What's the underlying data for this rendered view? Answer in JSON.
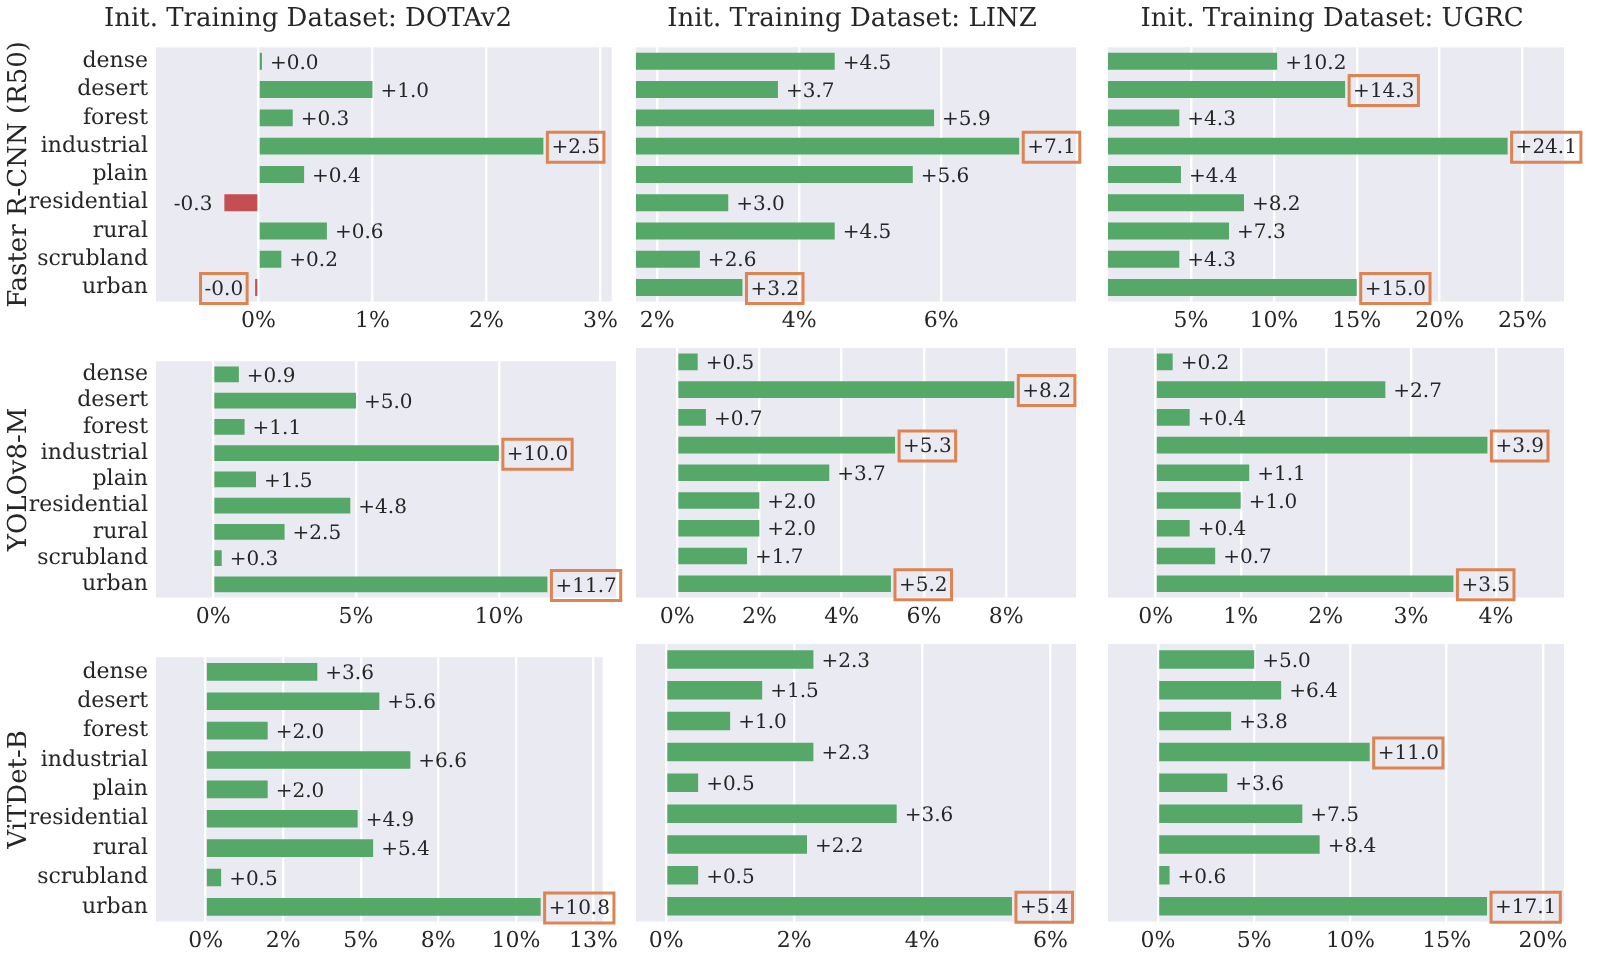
{
  "chart_data": [
    {
      "type": "bar",
      "orientation": "horizontal",
      "title": "Init. Training Dataset: DOTAv2",
      "ylabel": "Faster R-CNN (R50)",
      "categories": [
        "dense",
        "desert",
        "forest",
        "industrial",
        "plain",
        "residential",
        "rural",
        "scrubland",
        "urban"
      ],
      "values": [
        0.03,
        1.0,
        0.3,
        2.5,
        0.4,
        -0.3,
        0.6,
        0.2,
        -0.03
      ],
      "colors": [
        "#55a868",
        "#55a868",
        "#55a868",
        "#55a868",
        "#55a868",
        "#c44e52",
        "#55a868",
        "#55a868",
        "#c44e52"
      ],
      "value_labels": [
        "+0.0",
        "+1.0",
        "+0.3",
        null,
        "+0.4",
        "-0.3",
        "+0.6",
        "+0.2",
        null
      ],
      "annotations": [
        {
          "text": "+2.5",
          "x": 2.5,
          "y": "industrial"
        },
        {
          "text": "-0.0",
          "x": -0.03,
          "y": "urban"
        }
      ],
      "xlim": [
        -0.9,
        3.1
      ],
      "xticks": [
        {
          "value": 0,
          "label": "0%"
        },
        {
          "value": 1,
          "label": "1%"
        },
        {
          "value": 2,
          "label": "2%"
        },
        {
          "value": 3,
          "label": "3%"
        }
      ],
      "grid": "x"
    },
    {
      "type": "bar",
      "orientation": "horizontal",
      "title": "Init. Training Dataset: LINZ",
      "categories": [
        "dense",
        "desert",
        "forest",
        "industrial",
        "plain",
        "residential",
        "rural",
        "scrubland",
        "urban"
      ],
      "values": [
        4.5,
        3.7,
        5.9,
        7.1,
        5.6,
        3.0,
        4.5,
        2.6,
        3.2
      ],
      "color": "#55a868",
      "value_labels": [
        "+4.5",
        "+3.7",
        "+5.9",
        null,
        "+5.6",
        "+3.0",
        "+4.5",
        "+2.6",
        null
      ],
      "annotations": [
        {
          "text": "+7.1",
          "x": 7.1,
          "y": "industrial"
        },
        {
          "text": "+3.2",
          "x": 3.2,
          "y": "urban"
        }
      ],
      "xlim": [
        1.7,
        7.9
      ],
      "xticks": [
        {
          "value": 2,
          "label": "2%"
        },
        {
          "value": 4,
          "label": "4%"
        },
        {
          "value": 6,
          "label": "6%"
        }
      ],
      "grid": "x",
      "tick_labels": "x"
    },
    {
      "type": "bar",
      "orientation": "horizontal",
      "title": "Init. Training Dataset: UGRC",
      "categories": [
        "dense",
        "desert",
        "forest",
        "industrial",
        "plain",
        "residential",
        "rural",
        "scrubland",
        "urban"
      ],
      "values": [
        10.2,
        14.3,
        4.3,
        24.1,
        4.4,
        8.2,
        7.3,
        4.3,
        15.0
      ],
      "color": "#55a868",
      "value_labels": [
        "+10.2",
        null,
        "+4.3",
        null,
        "+4.4",
        "+8.2",
        "+7.3",
        "+4.3",
        null
      ],
      "annotations": [
        {
          "text": "+14.3",
          "x": 14.3,
          "y": "desert"
        },
        {
          "text": "+24.1",
          "x": 24.1,
          "y": "industrial"
        },
        {
          "text": "+15.0",
          "x": 15.0,
          "y": "urban"
        }
      ],
      "xlim": [
        0,
        27.5
      ],
      "xticks": [
        {
          "value": 5,
          "label": "5%"
        },
        {
          "value": 10,
          "label": "10%"
        },
        {
          "value": 15,
          "label": "15%"
        },
        {
          "value": 20,
          "label": "20%"
        },
        {
          "value": 25,
          "label": "25%"
        }
      ],
      "grid": "x",
      "tick_labels": "x"
    },
    {
      "type": "bar",
      "orientation": "horizontal",
      "ylabel": "YOLOv8-M",
      "categories": [
        "dense",
        "desert",
        "forest",
        "industrial",
        "plain",
        "residential",
        "rural",
        "scrubland",
        "urban"
      ],
      "values": [
        0.9,
        5.0,
        1.1,
        10.0,
        1.5,
        4.8,
        2.5,
        0.3,
        11.7
      ],
      "color": "#55a868",
      "value_labels": [
        "+0.9",
        "+5.0",
        "+1.1",
        null,
        "+1.5",
        "+4.8",
        "+2.5",
        "+0.3",
        null
      ],
      "annotations": [
        {
          "text": "+10.0",
          "x": 10.0,
          "y": "industrial"
        },
        {
          "text": "+11.7",
          "x": 11.7,
          "y": "urban"
        }
      ],
      "xlim": [
        -2,
        14.1
      ],
      "xticks": [
        {
          "value": 0,
          "label": "0%"
        },
        {
          "value": 5,
          "label": "5%"
        },
        {
          "value": 10,
          "label": "10%"
        }
      ],
      "grid": "x"
    },
    {
      "type": "bar",
      "orientation": "horizontal",
      "categories": [
        "dense",
        "desert",
        "forest",
        "industrial",
        "plain",
        "residential",
        "rural",
        "scrubland",
        "urban"
      ],
      "values": [
        0.5,
        8.2,
        0.7,
        5.3,
        3.7,
        2.0,
        2.0,
        1.7,
        5.2
      ],
      "color": "#55a868",
      "value_labels": [
        "+0.5",
        null,
        "+0.7",
        null,
        "+3.7",
        "+2.0",
        "+2.0",
        "+1.7",
        null
      ],
      "annotations": [
        {
          "text": "+8.2",
          "x": 8.2,
          "y": "desert"
        },
        {
          "text": "+5.3",
          "x": 5.3,
          "y": "industrial"
        },
        {
          "text": "+5.2",
          "x": 5.2,
          "y": "urban"
        }
      ],
      "xlim": [
        -1,
        9.7
      ],
      "xticks": [
        {
          "value": 0,
          "label": "0%"
        },
        {
          "value": 2,
          "label": "2%"
        },
        {
          "value": 4,
          "label": "4%"
        },
        {
          "value": 6,
          "label": "6%"
        },
        {
          "value": 8,
          "label": "8%"
        }
      ],
      "grid": "x",
      "tick_labels": "x"
    },
    {
      "type": "bar",
      "orientation": "horizontal",
      "categories": [
        "dense",
        "desert",
        "forest",
        "industrial",
        "plain",
        "residential",
        "rural",
        "scrubland",
        "urban"
      ],
      "values": [
        0.2,
        2.7,
        0.4,
        3.9,
        1.1,
        1.0,
        0.4,
        0.7,
        3.5
      ],
      "color": "#55a868",
      "value_labels": [
        "+0.2",
        "+2.7",
        "+0.4",
        null,
        "+1.1",
        "+1.0",
        "+0.4",
        "+0.7",
        null
      ],
      "annotations": [
        {
          "text": "+3.9",
          "x": 3.9,
          "y": "industrial"
        },
        {
          "text": "+3.5",
          "x": 3.5,
          "y": "urban"
        }
      ],
      "xlim": [
        -0.56,
        4.8
      ],
      "xticks": [
        {
          "value": 0,
          "label": "0%"
        },
        {
          "value": 1,
          "label": "1%"
        },
        {
          "value": 2,
          "label": "2%"
        },
        {
          "value": 3,
          "label": "3%"
        },
        {
          "value": 4,
          "label": "4%"
        }
      ],
      "grid": "x",
      "tick_labels": "x"
    },
    {
      "type": "bar",
      "orientation": "horizontal",
      "ylabel": "ViTDet-B",
      "categories": [
        "dense",
        "desert",
        "forest",
        "industrial",
        "plain",
        "residential",
        "rural",
        "scrubland",
        "urban"
      ],
      "values": [
        3.6,
        5.6,
        2.0,
        6.6,
        2.0,
        4.9,
        5.4,
        0.5,
        10.8
      ],
      "color": "#55a868",
      "value_labels": [
        "+3.6",
        "+5.6",
        "+2.0",
        "+6.6",
        "+2.0",
        "+4.9",
        "+5.4",
        "+0.5",
        null
      ],
      "annotations": [
        {
          "text": "+10.8",
          "x": 10.8,
          "y": "urban"
        }
      ],
      "xlim": [
        -1.6,
        12.8
      ],
      "xticks": [
        {
          "value": 0,
          "label": "0%"
        },
        {
          "value": 2.5,
          "label": "2%"
        },
        {
          "value": 5,
          "label": "5%"
        },
        {
          "value": 7.5,
          "label": "8%"
        },
        {
          "value": 10,
          "label": "10%"
        },
        {
          "value": 12.5,
          "label": "13%"
        }
      ],
      "grid": "x"
    },
    {
      "type": "bar",
      "orientation": "horizontal",
      "categories": [
        "dense",
        "desert",
        "forest",
        "industrial",
        "plain",
        "residential",
        "rural",
        "scrubland",
        "urban"
      ],
      "values": [
        2.3,
        1.5,
        1.0,
        2.3,
        0.5,
        3.6,
        2.2,
        0.5,
        5.4
      ],
      "color": "#55a868",
      "value_labels": [
        "+2.3",
        "+1.5",
        "+1.0",
        "+2.3",
        "+0.5",
        "+3.6",
        "+2.2",
        "+0.5",
        null
      ],
      "annotations": [
        {
          "text": "+5.4",
          "x": 5.4,
          "y": "urban"
        }
      ],
      "xlim": [
        -0.47,
        6.4
      ],
      "xticks": [
        {
          "value": 0,
          "label": "0%"
        },
        {
          "value": 2,
          "label": "2%"
        },
        {
          "value": 4,
          "label": "4%"
        },
        {
          "value": 6,
          "label": "6%"
        }
      ],
      "grid": "x",
      "tick_labels": "x"
    },
    {
      "type": "bar",
      "orientation": "horizontal",
      "categories": [
        "dense",
        "desert",
        "forest",
        "industrial",
        "plain",
        "residential",
        "rural",
        "scrubland",
        "urban"
      ],
      "values": [
        5.0,
        6.4,
        3.8,
        11.0,
        3.6,
        7.5,
        8.4,
        0.6,
        17.1
      ],
      "color": "#55a868",
      "value_labels": [
        "+5.0",
        "+6.4",
        "+3.8",
        null,
        "+3.6",
        "+7.5",
        "+8.4",
        "+0.6",
        null
      ],
      "annotations": [
        {
          "text": "+11.0",
          "x": 11.0,
          "y": "industrial"
        },
        {
          "text": "+17.1",
          "x": 17.1,
          "y": "urban"
        }
      ],
      "xlim": [
        -2.6,
        21.1
      ],
      "xticks": [
        {
          "value": 0,
          "label": "0%"
        },
        {
          "value": 5,
          "label": "5%"
        },
        {
          "value": 10,
          "label": "10%"
        },
        {
          "value": 15,
          "label": "15%"
        },
        {
          "value": 20,
          "label": "20%"
        }
      ],
      "grid": "x",
      "tick_labels": "x"
    }
  ]
}
